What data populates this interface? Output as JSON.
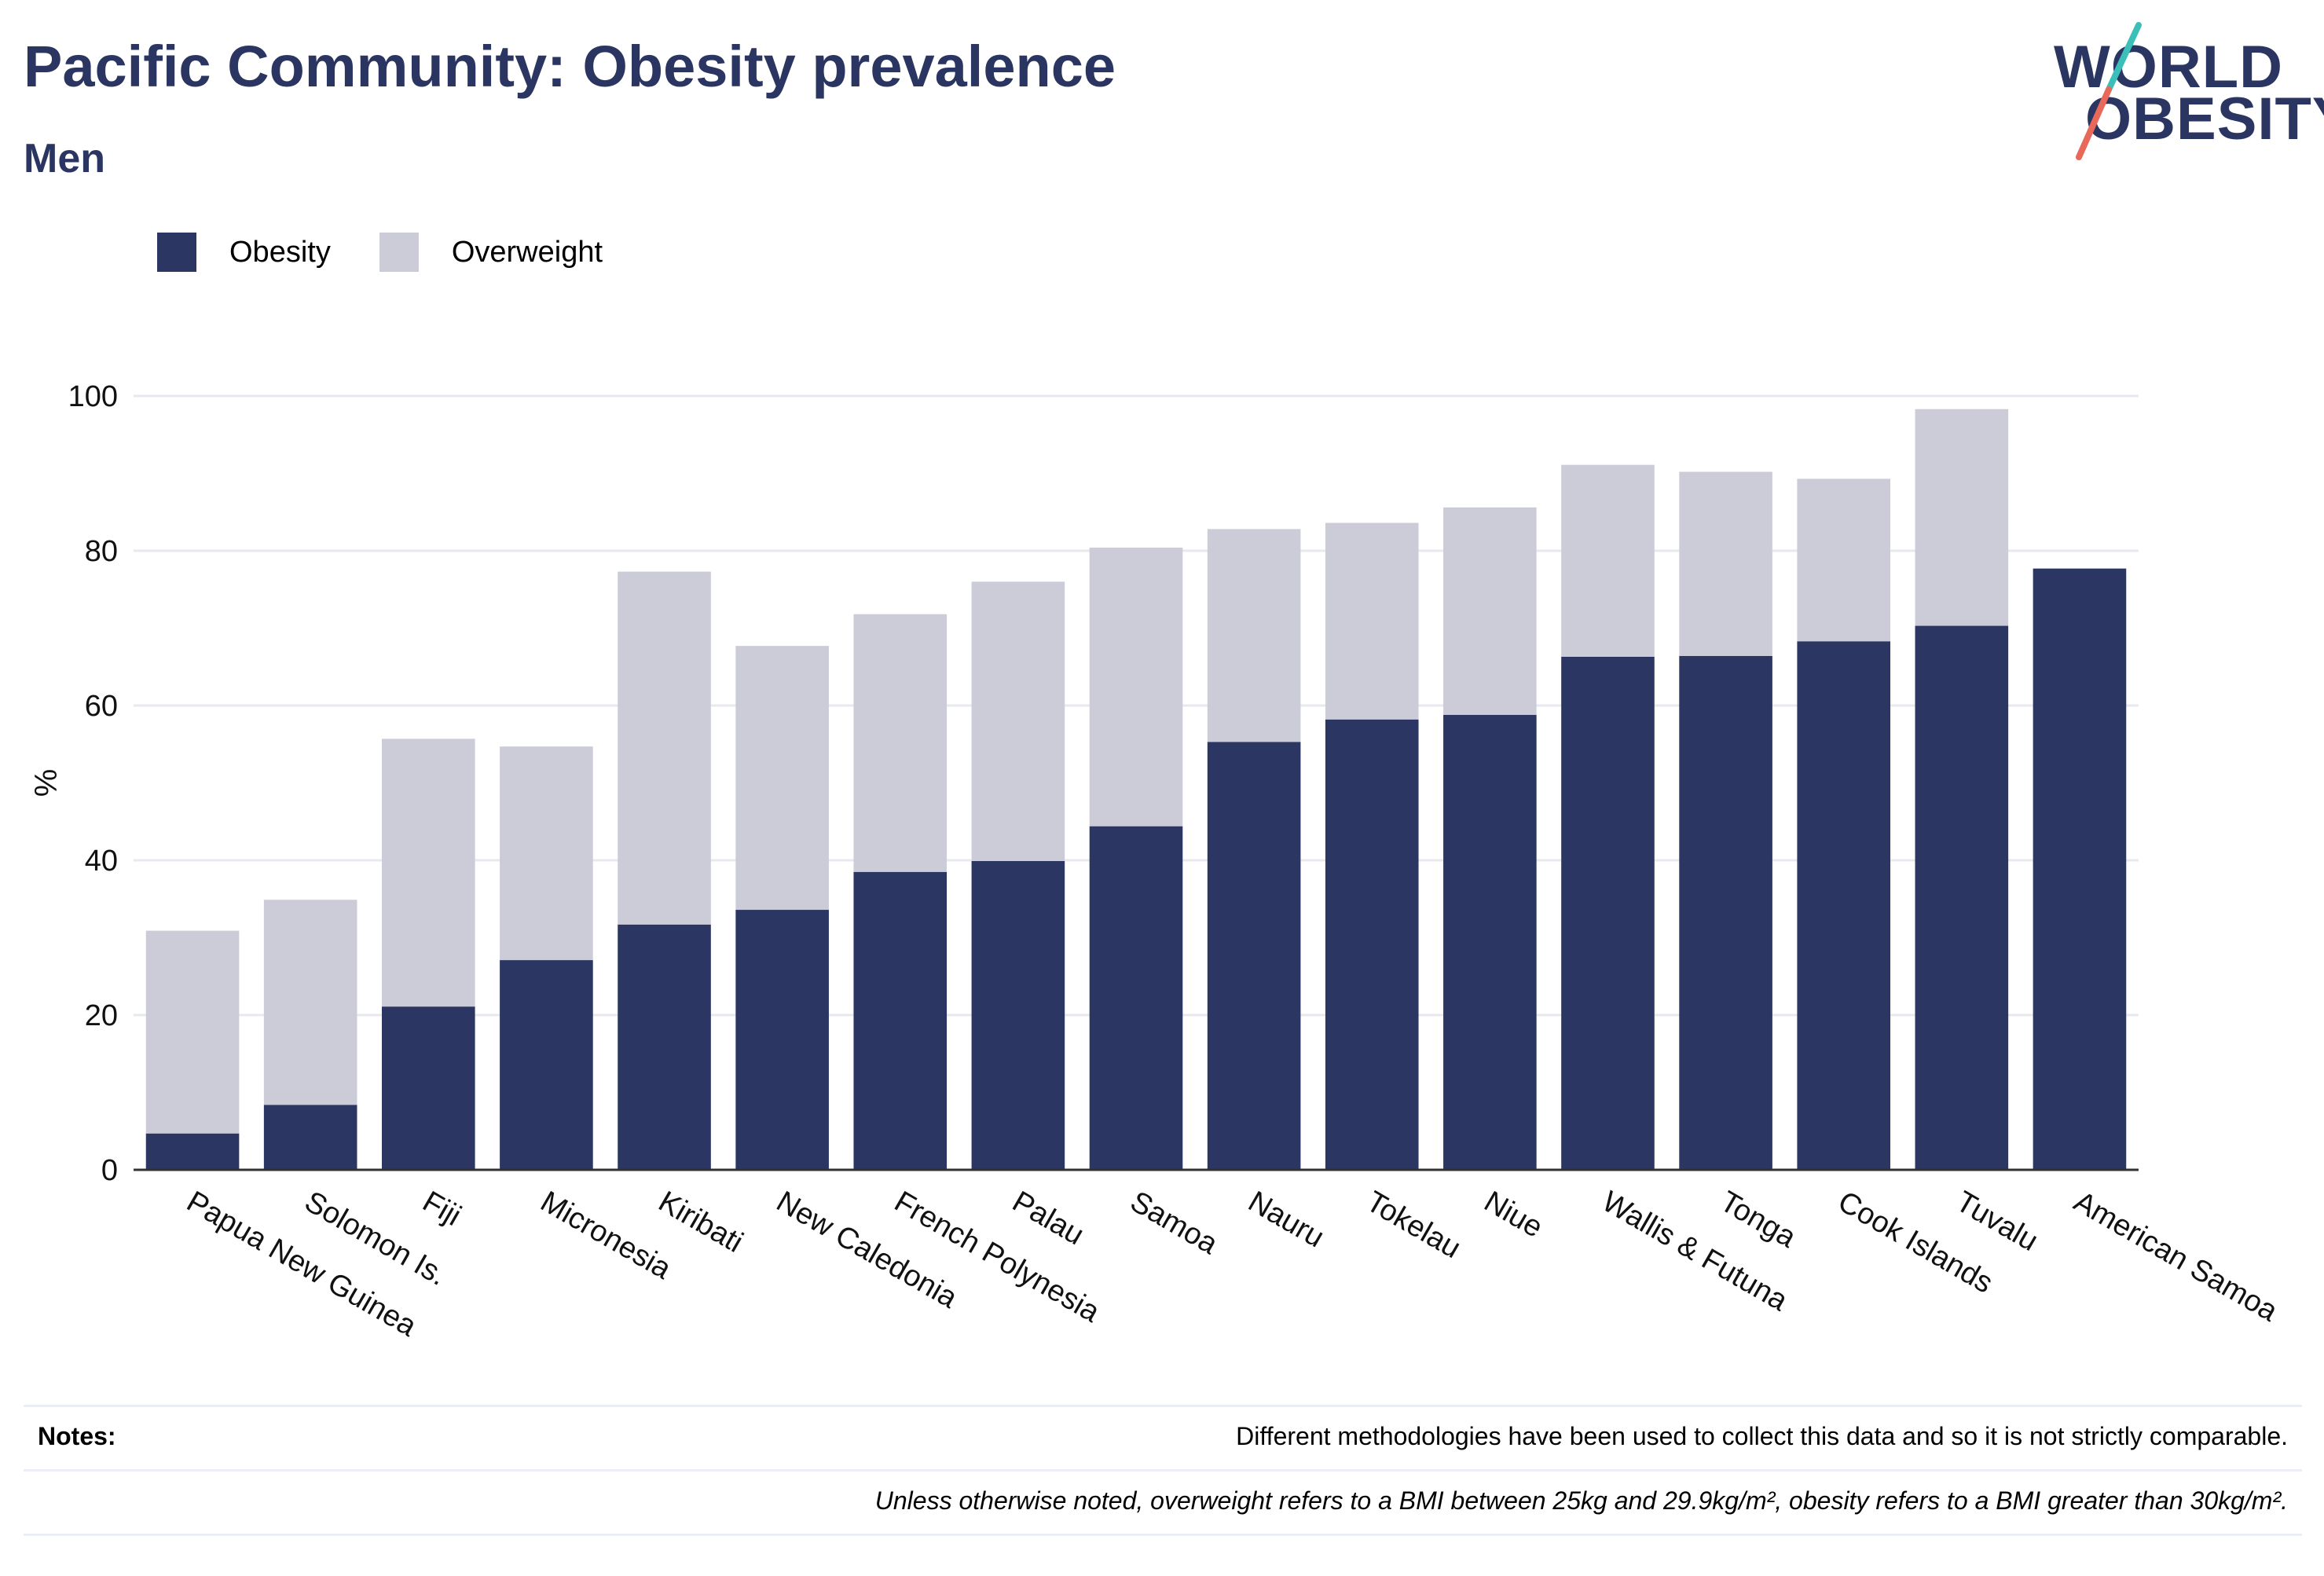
{
  "title": "Pacific Community: Obesity prevalence",
  "subtitle": "Men",
  "logo": {
    "line1": "WORLD",
    "line2": "OBESITY"
  },
  "colors": {
    "obesity": "#2b3662",
    "overweight": "#cbccd8",
    "title": "#2b3561",
    "logo_teal": "#3bbfb8",
    "logo_red": "#e8685a"
  },
  "legend": [
    {
      "label": "Obesity",
      "color": "#2b3662"
    },
    {
      "label": "Overweight",
      "color": "#cbccd8"
    }
  ],
  "chart_data": {
    "type": "bar",
    "stacked": true,
    "categories": [
      "Papua New Guinea",
      "Solomon Is.",
      "Fiji",
      "Micronesia",
      "Kiribati",
      "New Caledonia",
      "French Polynesia",
      "Palau",
      "Samoa",
      "Nauru",
      "Tokelau",
      "Niue",
      "Wallis & Futuna",
      "Tonga",
      "Cook Islands",
      "Tuvalu",
      "American Samoa"
    ],
    "series": [
      {
        "name": "Obesity",
        "values": [
          4.7,
          8.4,
          21.1,
          27.1,
          31.7,
          33.6,
          38.5,
          39.9,
          44.4,
          55.3,
          58.2,
          58.8,
          66.3,
          66.4,
          68.3,
          70.3,
          77.7
        ]
      },
      {
        "name": "Overweight",
        "values": [
          26.2,
          26.5,
          34.6,
          27.6,
          45.6,
          34.1,
          33.3,
          36.1,
          36.0,
          27.5,
          25.4,
          26.8,
          24.8,
          23.8,
          21.0,
          28.0,
          0
        ]
      }
    ],
    "ylabel": "%",
    "xlabel": "",
    "ylim": [
      0,
      100
    ],
    "yticks": [
      0,
      20,
      40,
      60,
      80,
      100
    ],
    "grid": true,
    "legend_position": "top-left"
  },
  "notes": {
    "label": "Notes:",
    "text1": "Different methodologies have been used to collect this data and so it is not strictly comparable.",
    "text2": "Unless otherwise noted, overweight refers to a BMI between 25kg and 29.9kg/m², obesity refers to a BMI greater than 30kg/m²."
  }
}
